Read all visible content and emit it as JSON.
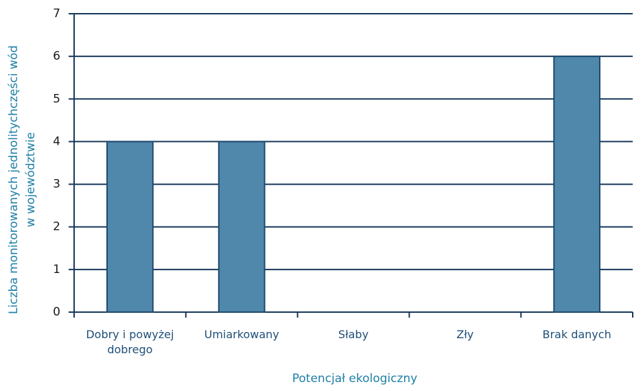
{
  "chart_data": {
    "type": "bar",
    "categories": [
      "Dobry i powyżej dobrego",
      "Umiarkowany",
      "Słaby",
      "Zły",
      "Brak danych"
    ],
    "values": [
      4,
      4,
      0,
      0,
      6
    ],
    "color": "#5088ac",
    "ylim": [
      0,
      7
    ],
    "yticks": [
      0,
      1,
      2,
      3,
      4,
      5,
      6,
      7
    ],
    "grid": true,
    "ylabel": [
      "Liczba monitorowanych jednolitychczęści wód",
      "w województwie"
    ],
    "xlabel": "Potencjał ekologiczny"
  }
}
